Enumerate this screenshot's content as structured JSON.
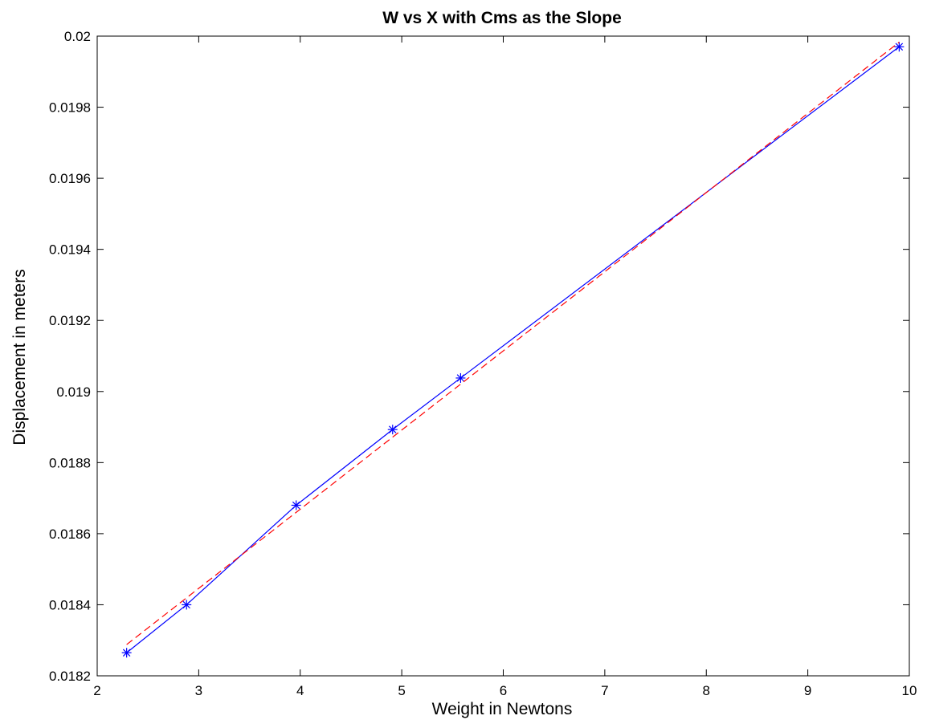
{
  "chart_data": {
    "type": "line",
    "title": "W vs X with Cms as the Slope",
    "xlabel": "Weight in Newtons",
    "ylabel": "Displacement in meters",
    "xlim": [
      2,
      10
    ],
    "ylim": [
      0.0182,
      0.02
    ],
    "xticks": [
      "2",
      "3",
      "4",
      "5",
      "6",
      "7",
      "8",
      "9",
      "10"
    ],
    "yticks": [
      "0.0182",
      "0.0184",
      "0.0186",
      "0.0188",
      "0.019",
      "0.0192",
      "0.0194",
      "0.0196",
      "0.0198",
      "0.02"
    ],
    "grid": false,
    "legend": false,
    "series": [
      {
        "style": "solid",
        "marker": "asterisk",
        "color": "#0000ff",
        "x": [
          2.29,
          2.88,
          3.96,
          4.91,
          5.58,
          9.9
        ],
        "y": [
          0.018265,
          0.0184,
          0.01868,
          0.018893,
          0.019038,
          0.01997
        ]
      },
      {
        "style": "dashed",
        "marker": "none",
        "color": "#ff0000",
        "x": [
          2.29,
          9.9
        ],
        "y": [
          0.018288,
          0.019983
        ]
      }
    ]
  }
}
